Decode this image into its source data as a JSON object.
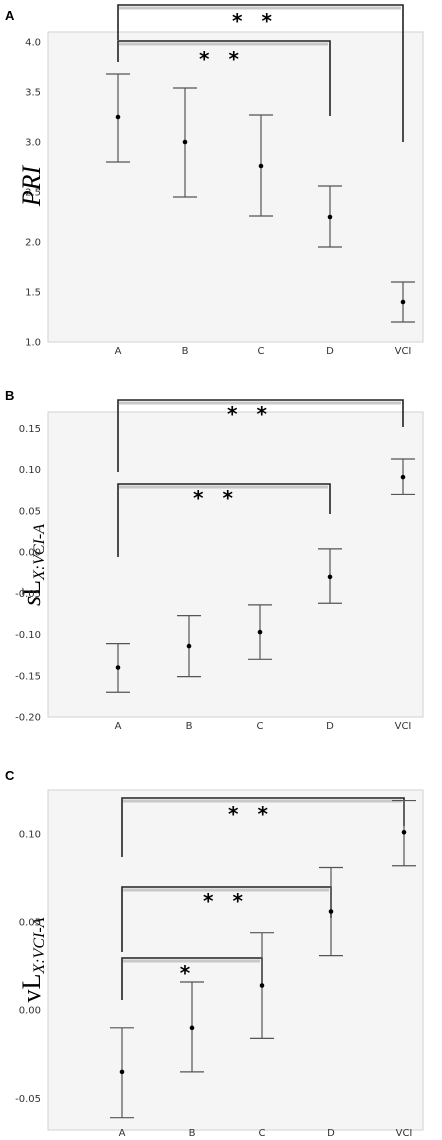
{
  "chart_data": [
    {
      "type": "errorbar",
      "panel": "A",
      "ylabel": "PRI",
      "categories": [
        "A",
        "B",
        "C",
        "D",
        "VCI"
      ],
      "ylim": [
        1.0,
        4.1
      ],
      "yticks": [
        1.0,
        1.5,
        2.0,
        2.5,
        3.0,
        3.5,
        4.0
      ],
      "tick_labels": [
        "1.0",
        "1.5",
        "2.0",
        "2.5",
        "3.0",
        "3.5",
        "4.0"
      ],
      "mean": [
        3.25,
        3.0,
        2.76,
        2.25,
        1.4
      ],
      "lower": [
        2.8,
        2.45,
        2.26,
        1.95,
        1.2
      ],
      "upper": [
        3.68,
        3.54,
        3.27,
        2.56,
        1.6
      ],
      "significance": [
        {
          "from": "A",
          "to": "D",
          "label": "* *"
        },
        {
          "from": "A",
          "to": "VCI",
          "label": "* *"
        }
      ]
    },
    {
      "type": "errorbar",
      "panel": "B",
      "ylabel": "sLX:VCI-A",
      "categories": [
        "A",
        "B",
        "C",
        "D",
        "VCI"
      ],
      "ylim": [
        -0.2,
        0.17
      ],
      "yticks": [
        -0.2,
        -0.15,
        -0.1,
        -0.05,
        0.0,
        0.05,
        0.1,
        0.15
      ],
      "tick_labels": [
        "-0.20",
        "-0.15",
        "-0.10",
        "-0.05",
        "0.00",
        "0.05",
        "0.10",
        "0.15"
      ],
      "mean": [
        -0.14,
        -0.114,
        -0.097,
        -0.03,
        0.091
      ],
      "lower": [
        -0.17,
        -0.151,
        -0.13,
        -0.062,
        0.07
      ],
      "upper": [
        -0.111,
        -0.077,
        -0.064,
        0.004,
        0.113
      ],
      "significance": [
        {
          "from": "A",
          "to": "D",
          "label": "* *"
        },
        {
          "from": "A",
          "to": "VCI",
          "label": "* *"
        }
      ]
    },
    {
      "type": "errorbar",
      "panel": "C",
      "ylabel": "vLX:VCI-A",
      "categories": [
        "A",
        "B",
        "C",
        "D",
        "VCI"
      ],
      "ylim": [
        -0.068,
        0.125
      ],
      "yticks": [
        -0.05,
        0.0,
        0.05,
        0.1
      ],
      "tick_labels": [
        "-0.05",
        "0.00",
        "0.05",
        "0.10"
      ],
      "mean": [
        -0.035,
        -0.01,
        0.014,
        0.056,
        0.101
      ],
      "lower": [
        -0.061,
        -0.035,
        -0.016,
        0.031,
        0.082
      ],
      "upper": [
        -0.01,
        0.016,
        0.044,
        0.081,
        0.119
      ],
      "significance": [
        {
          "from": "A",
          "to": "C",
          "label": "*"
        },
        {
          "from": "A",
          "to": "D",
          "label": "* *"
        },
        {
          "from": "A",
          "to": "VCI",
          "label": "* *"
        }
      ]
    }
  ]
}
